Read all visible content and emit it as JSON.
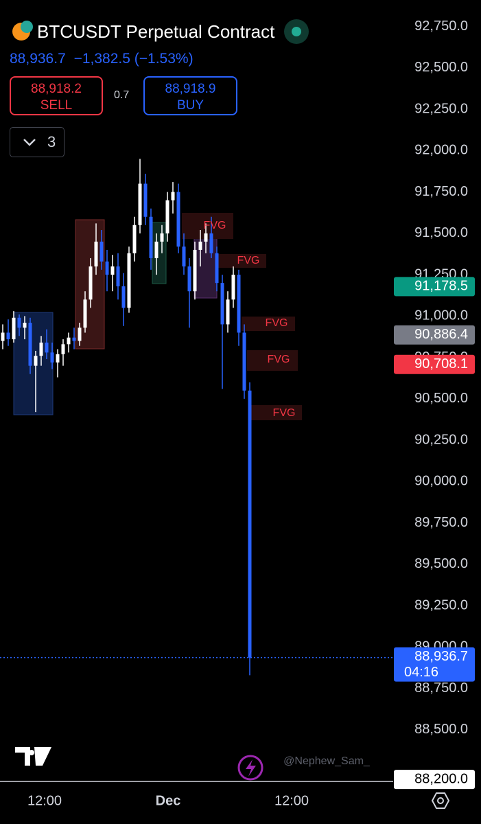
{
  "header": {
    "symbol": "BTCUSDT Perpetual Contract",
    "last": "88,936.7",
    "change": "−1,382.5",
    "change_pct": "(−1.53%)",
    "sell_price": "88,918.2",
    "sell_label": "SELL",
    "spread": "0.7",
    "buy_price": "88,918.9",
    "buy_label": "BUY",
    "indicator_count": "3"
  },
  "annotations": {
    "fvg": [
      "FVG",
      "FVG",
      "FVG",
      "FVG",
      "FVG"
    ],
    "watermark": "@Nephew_Sam_"
  },
  "chart_data": {
    "type": "candlestick",
    "x_labels": [
      "12:00",
      "Dec",
      "12:00"
    ],
    "up_color": "#ffffff",
    "down_color": "#2962ff",
    "ylim": [
      88180,
      92910
    ],
    "yticks": [
      {
        "value": 92750,
        "label": "92,750.0"
      },
      {
        "value": 92500,
        "label": "92,500.0"
      },
      {
        "value": 92250,
        "label": "92,250.0"
      },
      {
        "value": 92000,
        "label": "92,000.0"
      },
      {
        "value": 91750,
        "label": "91,750.0"
      },
      {
        "value": 91500,
        "label": "91,500.0"
      },
      {
        "value": 91250,
        "label": "91,250.0"
      },
      {
        "value": 91000,
        "label": "91,000.0"
      },
      {
        "value": 90750,
        "label": "90,750.0"
      },
      {
        "value": 90500,
        "label": "90,500.0"
      },
      {
        "value": 90250,
        "label": "90,250.0"
      },
      {
        "value": 90000,
        "label": "90,000.0"
      },
      {
        "value": 89750,
        "label": "89,750.0"
      },
      {
        "value": 89500,
        "label": "89,500.0"
      },
      {
        "value": 89250,
        "label": "89,250.0"
      },
      {
        "value": 89000,
        "label": "89,000.0"
      },
      {
        "value": 88750,
        "label": "88,750.0"
      },
      {
        "value": 88500,
        "label": "88,500.0"
      }
    ],
    "price_labels": [
      {
        "value": 91178.5,
        "label": "91,178.5",
        "color": "#089981"
      },
      {
        "value": 90886.4,
        "label": "90,886.4",
        "color": "#787b86"
      },
      {
        "value": 90708.1,
        "label": "90,708.1",
        "color": "#f23645"
      },
      {
        "value": 88200,
        "label": "88,200.0",
        "color": "#ffffff"
      }
    ],
    "current_price": {
      "value": 88936.7,
      "label": "88,936.7",
      "countdown": "04:16",
      "color": "#2962ff"
    },
    "ohlc": [
      [
        90850,
        90950,
        90800,
        90900
      ],
      [
        90900,
        90980,
        90820,
        90860
      ],
      [
        90860,
        91030,
        90840,
        90990
      ],
      [
        90990,
        91010,
        90880,
        90930
      ],
      [
        90930,
        91000,
        90860,
        90960
      ],
      [
        90960,
        90990,
        90650,
        90700
      ],
      [
        90700,
        90790,
        90420,
        90760
      ],
      [
        90760,
        90880,
        90700,
        90840
      ],
      [
        90840,
        90920,
        90740,
        90780
      ],
      [
        90780,
        90840,
        90680,
        90720
      ],
      [
        90720,
        90800,
        90630,
        90770
      ],
      [
        90770,
        90860,
        90700,
        90830
      ],
      [
        90830,
        90900,
        90780,
        90870
      ],
      [
        90870,
        90930,
        90800,
        90850
      ],
      [
        90850,
        90960,
        90820,
        90930
      ],
      [
        90930,
        91150,
        90900,
        91100
      ],
      [
        91100,
        91350,
        91050,
        91300
      ],
      [
        91300,
        91560,
        91250,
        91450
      ],
      [
        91450,
        91520,
        91280,
        91330
      ],
      [
        91330,
        91400,
        91150,
        91250
      ],
      [
        91250,
        91370,
        91150,
        91300
      ],
      [
        91300,
        91380,
        91100,
        91180
      ],
      [
        91180,
        91260,
        90940,
        91050
      ],
      [
        91050,
        91420,
        91020,
        91380
      ],
      [
        91380,
        91600,
        91330,
        91550
      ],
      [
        91550,
        91950,
        91500,
        91800
      ],
      [
        91800,
        91860,
        91550,
        91600
      ],
      [
        91600,
        91650,
        91280,
        91350
      ],
      [
        91350,
        91500,
        91250,
        91450
      ],
      [
        91450,
        91550,
        91380,
        91500
      ],
      [
        91500,
        91750,
        91450,
        91700
      ],
      [
        91700,
        91810,
        91620,
        91750
      ],
      [
        91750,
        91800,
        91380,
        91420
      ],
      [
        91420,
        91500,
        91250,
        91300
      ],
      [
        91300,
        91350,
        90930,
        91150
      ],
      [
        91150,
        91450,
        91100,
        91400
      ],
      [
        91400,
        91520,
        91300,
        91450
      ],
      [
        91450,
        91560,
        91380,
        91500
      ],
      [
        91500,
        91600,
        91350,
        91380
      ],
      [
        91380,
        91420,
        91150,
        91200
      ],
      [
        91200,
        91250,
        90560,
        90950
      ],
      [
        90950,
        91150,
        90900,
        91100
      ],
      [
        91100,
        91300,
        91050,
        91250
      ],
      [
        91250,
        91280,
        90820,
        90900
      ],
      [
        90900,
        90950,
        90500,
        90550
      ],
      [
        90550,
        90600,
        88830,
        88936.7
      ]
    ]
  }
}
